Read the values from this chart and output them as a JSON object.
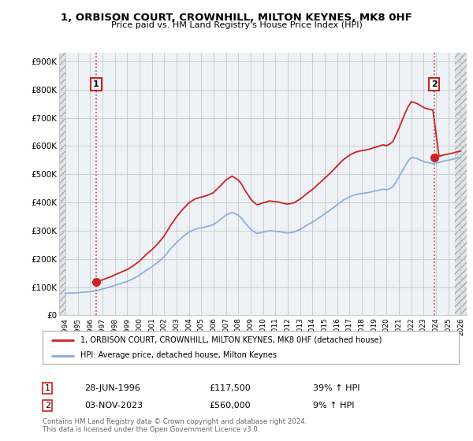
{
  "title": "1, ORBISON COURT, CROWNHILL, MILTON KEYNES, MK8 0HF",
  "subtitle": "Price paid vs. HM Land Registry's House Price Index (HPI)",
  "legend_label1": "1, ORBISON COURT, CROWNHILL, MILTON KEYNES, MK8 0HF (detached house)",
  "legend_label2": "HPI: Average price, detached house, Milton Keynes",
  "sale1_label": "1",
  "sale1_date": "28-JUN-1996",
  "sale1_price": "£117,500",
  "sale1_hpi": "39% ↑ HPI",
  "sale2_label": "2",
  "sale2_date": "03-NOV-2023",
  "sale2_price": "£560,000",
  "sale2_hpi": "9% ↑ HPI",
  "footnote": "Contains HM Land Registry data © Crown copyright and database right 2024.\nThis data is licensed under the Open Government Licence v3.0.",
  "sale1_x": 1996.49,
  "sale1_y": 117500,
  "sale2_x": 2023.84,
  "sale2_y": 560000,
  "ylim": [
    0,
    930000
  ],
  "xlim": [
    1993.5,
    2026.5
  ],
  "hatch_start2": 2025.5,
  "line_color_red": "#cc2222",
  "line_color_blue": "#88aadd",
  "vline_color": "#cc2222",
  "background_color": "#eef2f7",
  "grid_color": "#cccccc",
  "label_box_color": "#cc2222",
  "hpi_years": [
    1994.0,
    1994.25,
    1994.5,
    1994.75,
    1995.0,
    1995.25,
    1995.5,
    1995.75,
    1996.0,
    1996.25,
    1996.5,
    1996.75,
    1997.0,
    1997.25,
    1997.5,
    1997.75,
    1998.0,
    1998.25,
    1998.5,
    1998.75,
    1999.0,
    1999.25,
    1999.5,
    1999.75,
    2000.0,
    2000.25,
    2000.5,
    2000.75,
    2001.0,
    2001.25,
    2001.5,
    2001.75,
    2002.0,
    2002.25,
    2002.5,
    2002.75,
    2003.0,
    2003.25,
    2003.5,
    2003.75,
    2004.0,
    2004.25,
    2004.5,
    2004.75,
    2005.0,
    2005.25,
    2005.5,
    2005.75,
    2006.0,
    2006.25,
    2006.5,
    2006.75,
    2007.0,
    2007.25,
    2007.5,
    2007.75,
    2008.0,
    2008.25,
    2008.5,
    2008.75,
    2009.0,
    2009.25,
    2009.5,
    2009.75,
    2010.0,
    2010.25,
    2010.5,
    2010.75,
    2011.0,
    2011.25,
    2011.5,
    2011.75,
    2012.0,
    2012.25,
    2012.5,
    2012.75,
    2013.0,
    2013.25,
    2013.5,
    2013.75,
    2014.0,
    2014.25,
    2014.5,
    2014.75,
    2015.0,
    2015.25,
    2015.5,
    2015.75,
    2016.0,
    2016.25,
    2016.5,
    2016.75,
    2017.0,
    2017.25,
    2017.5,
    2017.75,
    2018.0,
    2018.25,
    2018.5,
    2018.75,
    2019.0,
    2019.25,
    2019.5,
    2019.75,
    2020.0,
    2020.25,
    2020.5,
    2020.75,
    2021.0,
    2021.25,
    2021.5,
    2021.75,
    2022.0,
    2022.25,
    2022.5,
    2022.75,
    2023.0,
    2023.25,
    2023.5,
    2023.75,
    2024.0,
    2024.25,
    2024.5,
    2024.75,
    2025.0,
    2025.25,
    2025.5,
    2025.75,
    2026.0
  ],
  "hpi_values": [
    78000,
    78500,
    79000,
    79500,
    80000,
    81000,
    82000,
    83000,
    84000,
    85500,
    87000,
    90000,
    93000,
    96000,
    99000,
    102000,
    106000,
    109500,
    113000,
    116500,
    120000,
    125000,
    130000,
    136000,
    142000,
    150000,
    158000,
    165000,
    172000,
    180000,
    188000,
    198000,
    208000,
    221000,
    235000,
    246000,
    258000,
    268000,
    278000,
    286000,
    295000,
    300000,
    305000,
    308000,
    310000,
    312000,
    315000,
    318000,
    322000,
    330000,
    338000,
    346000,
    355000,
    360000,
    365000,
    360000,
    355000,
    345000,
    330000,
    318000,
    305000,
    297000,
    290000,
    292000,
    295000,
    297000,
    300000,
    299000,
    298000,
    297000,
    295000,
    293000,
    292000,
    293000,
    295000,
    300000,
    305000,
    311000,
    318000,
    324000,
    330000,
    337000,
    345000,
    352000,
    360000,
    367000,
    375000,
    383000,
    392000,
    400000,
    408000,
    414000,
    420000,
    424000,
    428000,
    430000,
    432000,
    433000,
    435000,
    437000,
    440000,
    442000,
    445000,
    447000,
    445000,
    449000,
    455000,
    472000,
    490000,
    510000,
    530000,
    547000,
    560000,
    558000,
    555000,
    550000,
    545000,
    542000,
    540000,
    538000,
    540000,
    542000,
    545000,
    548000,
    550000,
    552000,
    555000,
    558000,
    560000
  ]
}
